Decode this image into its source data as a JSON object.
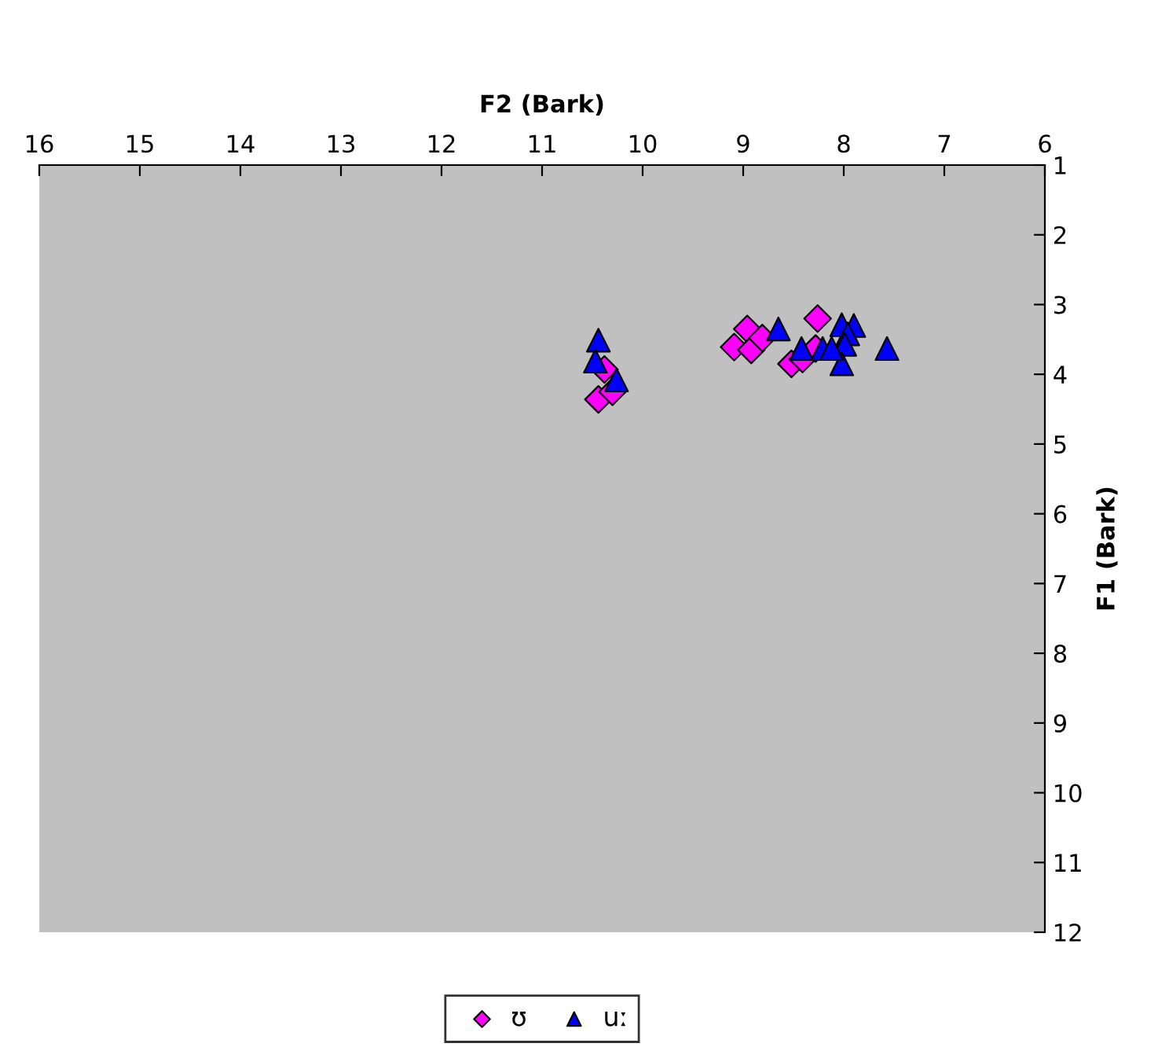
{
  "chart_data": {
    "type": "scatter",
    "xlabel": "F2 (Bark)",
    "ylabel": "F1 (Bark)",
    "xlim": [
      16,
      6
    ],
    "xticks": [
      16,
      15,
      14,
      13,
      12,
      11,
      10,
      9,
      8,
      7,
      6
    ],
    "ylim": [
      12,
      1
    ],
    "yticks": [
      1,
      2,
      3,
      4,
      5,
      6,
      7,
      8,
      9,
      10,
      11,
      12
    ],
    "grid": false,
    "legend": "bottom",
    "series": [
      {
        "name": "ʊ",
        "color": "#ff00ff",
        "marker": "diamond",
        "x": [
          8.26,
          8.96,
          9.09,
          8.92,
          8.81,
          8.52,
          8.41,
          8.28,
          10.44,
          10.3,
          10.38
        ],
        "values": [
          3.2,
          3.35,
          3.61,
          3.65,
          3.48,
          3.85,
          3.78,
          3.63,
          4.36,
          4.25,
          3.93
        ]
      },
      {
        "name": "uː",
        "color": "#0000ff",
        "marker": "triangle",
        "x": [
          10.44,
          10.47,
          10.26,
          8.65,
          8.42,
          8.21,
          8.02,
          7.9,
          7.96,
          7.99,
          8.02,
          7.57,
          8.12
        ],
        "values": [
          3.51,
          3.81,
          4.08,
          3.35,
          3.63,
          3.63,
          3.29,
          3.3,
          3.42,
          3.57,
          3.85,
          3.63,
          3.63
        ]
      }
    ]
  }
}
